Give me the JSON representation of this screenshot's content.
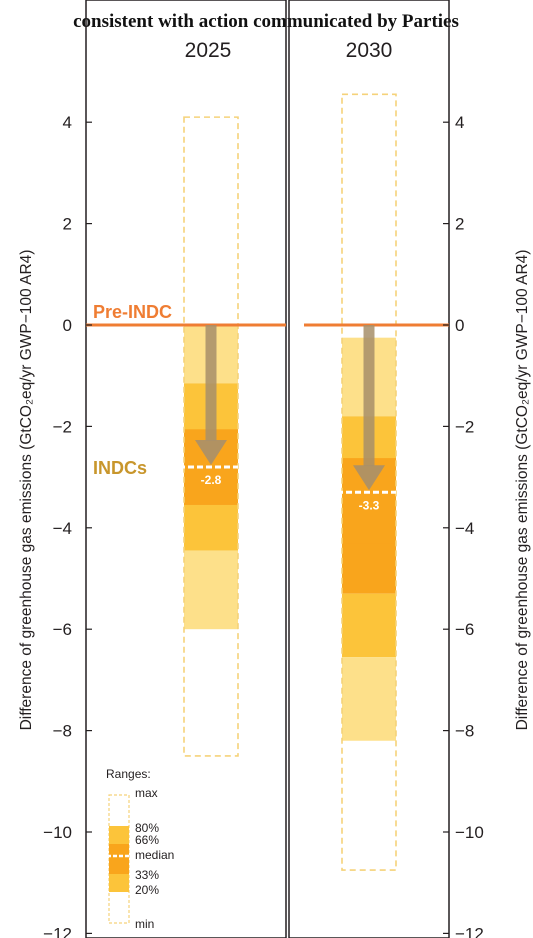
{
  "header": {
    "text": "consistent with action communicated by Parties"
  },
  "colors": {
    "outer_box": "#f5d27a",
    "band_20_33": "#fcc43a",
    "band_33_66": "#f9a51c",
    "band_66_80": "#fcc43a",
    "band_outer": "#fde08a",
    "median_line": "#ffffff",
    "arrow": "#a8906a",
    "pre_indc": "#ef7d33",
    "indcs": "#c8962c",
    "panel_border": "#231f20"
  },
  "chart_data": {
    "type": "range-bar",
    "ylabel": "Difference of greenhouse gas emissions (GtCO₂eq/yr GWP−100 AR4)",
    "ylim": [
      -12,
      5.8
    ],
    "yticks": [
      4,
      2,
      0,
      -2,
      -4,
      -6,
      -8,
      -10,
      -12
    ],
    "ytick_labels": [
      "4",
      "2",
      "0",
      "−2",
      "−4",
      "−6",
      "−8",
      "−10",
      "−12"
    ],
    "reference_line": {
      "label": "Pre-INDC",
      "value": 0
    },
    "arrow_label": "INDCs",
    "panels": [
      {
        "title": "2025",
        "max": 4.1,
        "p80": 0.0,
        "p66": -1.15,
        "median": -2.8,
        "p33": -3.55,
        "p20": -4.45,
        "p_outer_low": -6.0,
        "min": -8.5,
        "median_label": "-2.8"
      },
      {
        "title": "2030",
        "max": 4.55,
        "p80": -0.25,
        "p66": -1.8,
        "median": -3.3,
        "p33": -5.3,
        "p20": -6.55,
        "p_outer_low": -8.2,
        "min": -10.75,
        "median_label": "-3.3"
      }
    ],
    "legend": {
      "title": "Ranges:",
      "labels": [
        "max",
        "80%",
        "66%",
        "median",
        "33%",
        "20%",
        "min"
      ]
    }
  }
}
